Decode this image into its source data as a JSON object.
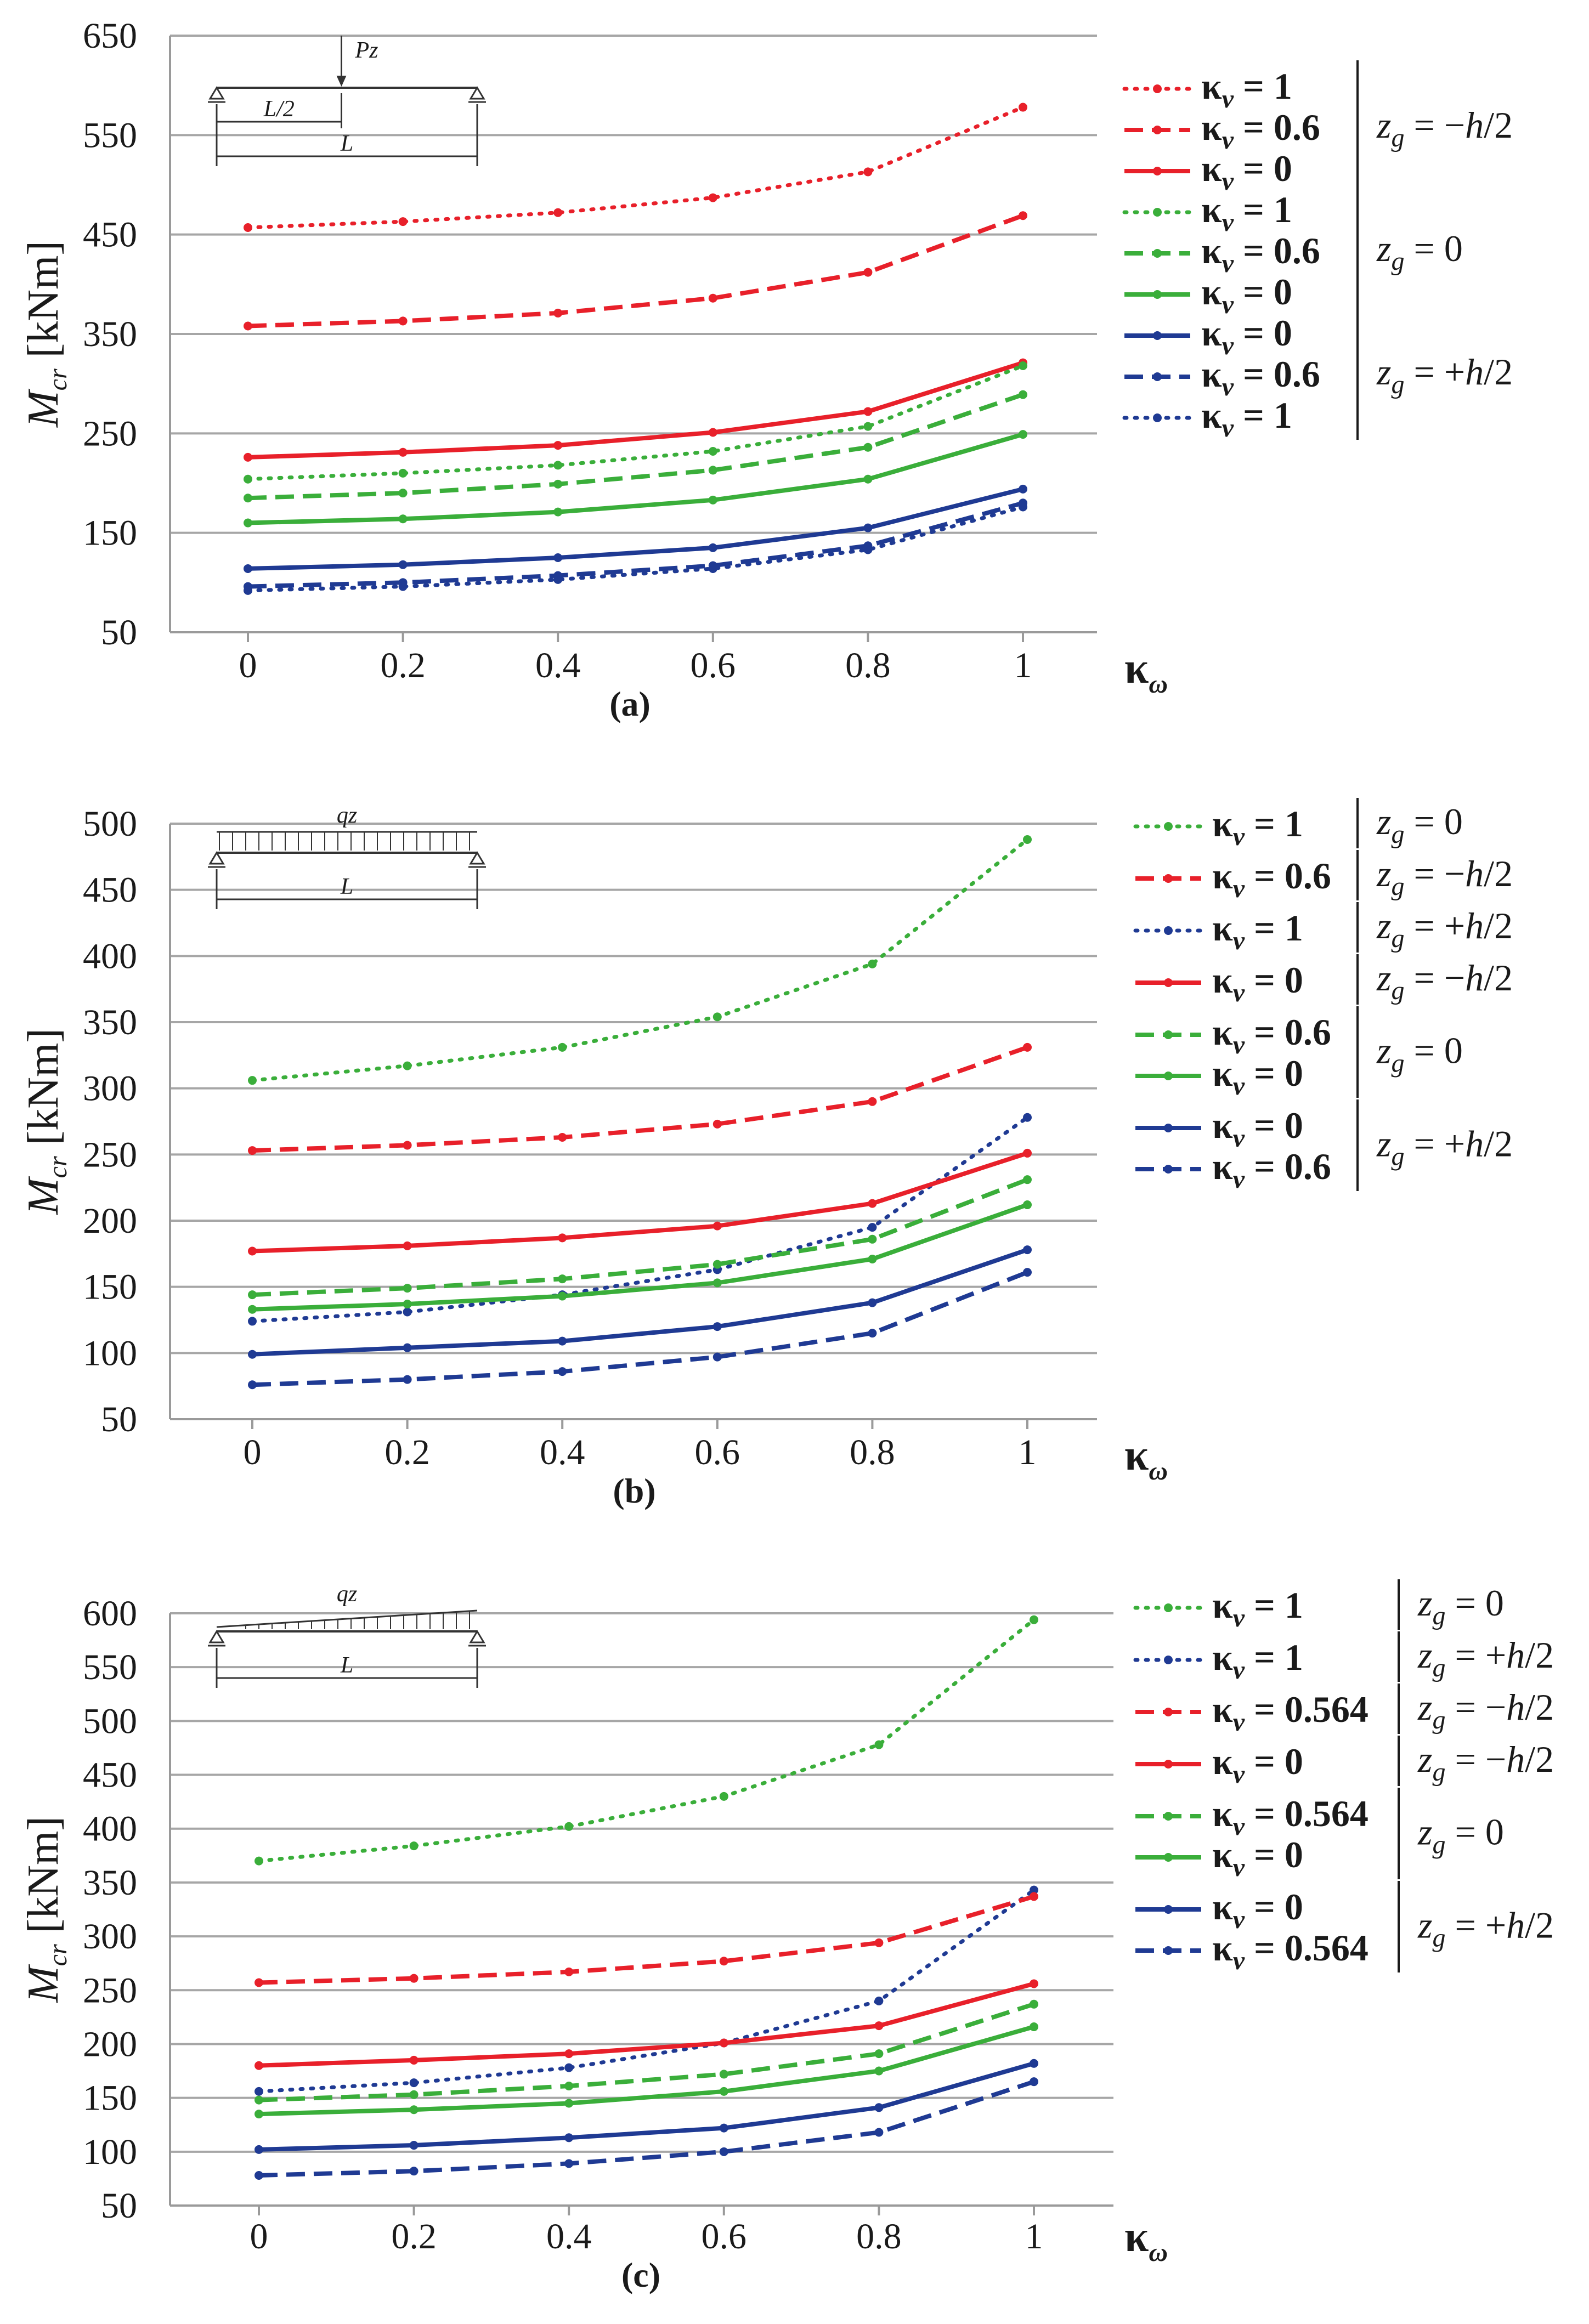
{
  "chart_data": [
    {
      "type": "line",
      "panel_label": "(a)",
      "ylabel": "M",
      "ylabel_sub": "cr",
      "ylabel_unit": " [kNm]",
      "xlabel": "κ",
      "xlabel_sub": "ω",
      "x": [
        0,
        0.2,
        0.4,
        0.6,
        0.8,
        1
      ],
      "x_tick_labels": [
        "0",
        "0.2",
        "0.4",
        "0.6",
        "0.8",
        "1"
      ],
      "ylim": [
        50,
        650
      ],
      "y_ticks": [
        50,
        150,
        250,
        350,
        450,
        550,
        650
      ],
      "y_tick_labels": [
        "50",
        "150",
        "250",
        "350",
        "450",
        "550",
        "650"
      ],
      "grid": true,
      "load_sketch": {
        "type": "point",
        "load_label": "Pz",
        "half_label": "L/2",
        "span_label": "L"
      },
      "series": [
        {
          "name": "κν = 1, zg = −h/2",
          "color": "#e8202a",
          "style": "dotted",
          "values": [
            457,
            463,
            472,
            487,
            513,
            578
          ]
        },
        {
          "name": "κν = 0.6, zg = −h/2",
          "color": "#e8202a",
          "style": "dashed",
          "values": [
            358,
            363,
            371,
            386,
            412,
            469
          ]
        },
        {
          "name": "κν = 0, zg = −h/2",
          "color": "#e8202a",
          "style": "solid",
          "values": [
            226,
            231,
            238,
            251,
            272,
            321
          ]
        },
        {
          "name": "κν = 1, zg = 0",
          "color": "#3aae3a",
          "style": "dotted",
          "values": [
            204,
            210,
            218,
            232,
            257,
            318
          ]
        },
        {
          "name": "κν = 0.6, zg = 0",
          "color": "#3aae3a",
          "style": "dashed",
          "values": [
            185,
            190,
            199,
            213,
            236,
            289
          ]
        },
        {
          "name": "κν = 0, zg = 0",
          "color": "#3aae3a",
          "style": "solid",
          "values": [
            160,
            164,
            171,
            183,
            204,
            249
          ]
        },
        {
          "name": "κν = 0, zg = +h/2",
          "color": "#1f3a93",
          "style": "solid",
          "values": [
            114,
            118,
            125,
            135,
            155,
            194
          ]
        },
        {
          "name": "κν = 0.6, zg = +h/2",
          "color": "#1f3a93",
          "style": "dashed",
          "values": [
            96,
            100,
            107,
            117,
            137,
            180
          ]
        },
        {
          "name": "κν = 1, zg = +h/2",
          "color": "#1f3a93",
          "style": "dotted",
          "values": [
            92,
            96,
            103,
            114,
            133,
            176
          ]
        }
      ],
      "legend": [
        {
          "color": "#e8202a",
          "style": "dotted",
          "kappa": "κ",
          "sub": "ν",
          "value": " = 1"
        },
        {
          "color": "#e8202a",
          "style": "dashed",
          "kappa": "κ",
          "sub": "ν",
          "value": " = 0.6"
        },
        {
          "color": "#e8202a",
          "style": "solid",
          "kappa": "κ",
          "sub": "ν",
          "value": " = 0"
        },
        {
          "color": "#3aae3a",
          "style": "dotted",
          "kappa": "κ",
          "sub": "ν",
          "value": " = 1"
        },
        {
          "color": "#3aae3a",
          "style": "dashed",
          "kappa": "κ",
          "sub": "ν",
          "value": " = 0.6"
        },
        {
          "color": "#3aae3a",
          "style": "solid",
          "kappa": "κ",
          "sub": "ν",
          "value": " = 0"
        },
        {
          "color": "#1f3a93",
          "style": "solid",
          "kappa": "κ",
          "sub": "ν",
          "value": " = 0"
        },
        {
          "color": "#1f3a93",
          "style": "dashed",
          "kappa": "κ",
          "sub": "ν",
          "value": " = 0.6"
        },
        {
          "color": "#1f3a93",
          "style": "dotted",
          "kappa": "κ",
          "sub": "ν",
          "value": " = 1"
        }
      ],
      "zg_groups": [
        {
          "first": 0,
          "last": 2,
          "z": "z",
          "sub": "g",
          "value": " = −",
          "h": "h",
          "tail": "/2"
        },
        {
          "first": 3,
          "last": 5,
          "z": "z",
          "sub": "g",
          "value": " = 0",
          "h": "",
          "tail": ""
        },
        {
          "first": 6,
          "last": 8,
          "z": "z",
          "sub": "g",
          "value": " = +",
          "h": "h",
          "tail": "/2"
        }
      ]
    },
    {
      "type": "line",
      "panel_label": "(b)",
      "ylabel": "M",
      "ylabel_sub": "cr",
      "ylabel_unit": " [kNm]",
      "xlabel": "κ",
      "xlabel_sub": "ω",
      "x": [
        0,
        0.2,
        0.4,
        0.6,
        0.8,
        1
      ],
      "x_tick_labels": [
        "0",
        "0.2",
        "0.4",
        "0.6",
        "0.8",
        "1"
      ],
      "ylim": [
        50,
        500
      ],
      "y_ticks": [
        50,
        100,
        150,
        200,
        250,
        300,
        350,
        400,
        450,
        500
      ],
      "y_tick_labels": [
        "50",
        "100",
        "150",
        "200",
        "250",
        "300",
        "350",
        "400",
        "450",
        "500"
      ],
      "grid": true,
      "load_sketch": {
        "type": "uniform",
        "load_label": "qz",
        "span_label": "L"
      },
      "series": [
        {
          "name": "κν = 1, zg = 0",
          "color": "#3aae3a",
          "style": "dotted",
          "values": [
            306,
            317,
            331,
            354,
            394,
            488
          ]
        },
        {
          "name": "κν = 0.6, zg = −h/2",
          "color": "#e8202a",
          "style": "dashed",
          "values": [
            253,
            257,
            263,
            273,
            290,
            331
          ]
        },
        {
          "name": "κν = 1, zg = +h/2",
          "color": "#1f3a93",
          "style": "dotted",
          "values": [
            124,
            131,
            144,
            163,
            195,
            278
          ]
        },
        {
          "name": "κν = 0, zg = −h/2",
          "color": "#e8202a",
          "style": "solid",
          "values": [
            177,
            181,
            187,
            196,
            213,
            251
          ]
        },
        {
          "name": "κν = 0.6, zg = 0",
          "color": "#3aae3a",
          "style": "dashed",
          "values": [
            144,
            149,
            156,
            167,
            186,
            231
          ]
        },
        {
          "name": "κν = 0, zg = 0",
          "color": "#3aae3a",
          "style": "solid",
          "values": [
            133,
            137,
            143,
            153,
            171,
            212
          ]
        },
        {
          "name": "κν = 0, zg = +h/2",
          "color": "#1f3a93",
          "style": "solid",
          "values": [
            99,
            104,
            109,
            120,
            138,
            178
          ]
        },
        {
          "name": "κν = 0.6, zg = +h/2",
          "color": "#1f3a93",
          "style": "dashed",
          "values": [
            76,
            80,
            86,
            97,
            115,
            161
          ]
        }
      ],
      "legend": [
        {
          "color": "#3aae3a",
          "style": "dotted",
          "kappa": "κ",
          "sub": "ν",
          "value": " = 1"
        },
        {
          "color": "#e8202a",
          "style": "dashed",
          "kappa": "κ",
          "sub": "ν",
          "value": " = 0.6"
        },
        {
          "color": "#1f3a93",
          "style": "dotted",
          "kappa": "κ",
          "sub": "ν",
          "value": " = 1"
        },
        {
          "color": "#e8202a",
          "style": "solid",
          "kappa": "κ",
          "sub": "ν",
          "value": " = 0"
        },
        {
          "color": "#3aae3a",
          "style": "dashed",
          "kappa": "κ",
          "sub": "ν",
          "value": " = 0.6"
        },
        {
          "color": "#3aae3a",
          "style": "solid",
          "kappa": "κ",
          "sub": "ν",
          "value": " = 0"
        },
        {
          "color": "#1f3a93",
          "style": "solid",
          "kappa": "κ",
          "sub": "ν",
          "value": " = 0"
        },
        {
          "color": "#1f3a93",
          "style": "dashed",
          "kappa": "κ",
          "sub": "ν",
          "value": " = 0.6"
        }
      ],
      "zg_groups": [
        {
          "first": 0,
          "last": 0,
          "z": "z",
          "sub": "g",
          "value": " = 0",
          "h": "",
          "tail": ""
        },
        {
          "first": 1,
          "last": 1,
          "z": "z",
          "sub": "g",
          "value": " = −",
          "h": "h",
          "tail": "/2"
        },
        {
          "first": 2,
          "last": 2,
          "z": "z",
          "sub": "g",
          "value": " = +",
          "h": "h",
          "tail": "/2"
        },
        {
          "first": 3,
          "last": 3,
          "z": "z",
          "sub": "g",
          "value": " = −",
          "h": "h",
          "tail": "/2"
        },
        {
          "first": 4,
          "last": 5,
          "z": "z",
          "sub": "g",
          "value": " = 0",
          "h": "",
          "tail": ""
        },
        {
          "first": 6,
          "last": 7,
          "z": "z",
          "sub": "g",
          "value": " = +",
          "h": "h",
          "tail": "/2"
        }
      ]
    },
    {
      "type": "line",
      "panel_label": "(c)",
      "ylabel": "M",
      "ylabel_sub": "cr",
      "ylabel_unit": " [kNm]",
      "xlabel": "κ",
      "xlabel_sub": "ω",
      "x": [
        0,
        0.2,
        0.4,
        0.6,
        0.8,
        1
      ],
      "x_tick_labels": [
        "0",
        "0.2",
        "0.4",
        "0.6",
        "0.8",
        "1"
      ],
      "ylim": [
        50,
        600
      ],
      "y_ticks": [
        50,
        100,
        150,
        200,
        250,
        300,
        350,
        400,
        450,
        500,
        550,
        600
      ],
      "y_tick_labels": [
        "50",
        "100",
        "150",
        "200",
        "250",
        "300",
        "350",
        "400",
        "450",
        "500",
        "550",
        "600"
      ],
      "grid": true,
      "load_sketch": {
        "type": "triangular",
        "load_label": "qz",
        "span_label": "L"
      },
      "series": [
        {
          "name": "κν = 1, zg = 0",
          "color": "#3aae3a",
          "style": "dotted",
          "values": [
            370,
            384,
            402,
            430,
            478,
            594
          ]
        },
        {
          "name": "κν = 1, zg = +h/2",
          "color": "#1f3a93",
          "style": "dotted",
          "values": [
            156,
            164,
            178,
            201,
            240,
            343
          ]
        },
        {
          "name": "κν = 0.564, zg = −h/2",
          "color": "#e8202a",
          "style": "dashed",
          "values": [
            257,
            261,
            267,
            277,
            294,
            337
          ]
        },
        {
          "name": "κν = 0, zg = −h/2",
          "color": "#e8202a",
          "style": "solid",
          "values": [
            180,
            185,
            191,
            201,
            217,
            256
          ]
        },
        {
          "name": "κν = 0.564, zg = 0",
          "color": "#3aae3a",
          "style": "dashed",
          "values": [
            148,
            153,
            161,
            172,
            191,
            237
          ]
        },
        {
          "name": "κν = 0, zg = 0",
          "color": "#3aae3a",
          "style": "solid",
          "values": [
            135,
            139,
            145,
            156,
            175,
            216
          ]
        },
        {
          "name": "κν = 0, zg = +h/2",
          "color": "#1f3a93",
          "style": "solid",
          "values": [
            102,
            106,
            113,
            122,
            141,
            182
          ]
        },
        {
          "name": "κν = 0.564, zg = +h/2",
          "color": "#1f3a93",
          "style": "dashed",
          "values": [
            78,
            82,
            89,
            100,
            118,
            165
          ]
        }
      ],
      "legend": [
        {
          "color": "#3aae3a",
          "style": "dotted",
          "kappa": "κ",
          "sub": "ν",
          "value": " = 1"
        },
        {
          "color": "#1f3a93",
          "style": "dotted",
          "kappa": "κ",
          "sub": "ν",
          "value": " = 1"
        },
        {
          "color": "#e8202a",
          "style": "dashed",
          "kappa": "κ",
          "sub": "ν",
          "value": " = 0.564"
        },
        {
          "color": "#e8202a",
          "style": "solid",
          "kappa": "κ",
          "sub": "ν",
          "value": " = 0"
        },
        {
          "color": "#3aae3a",
          "style": "dashed",
          "kappa": "κ",
          "sub": "ν",
          "value": " = 0.564"
        },
        {
          "color": "#3aae3a",
          "style": "solid",
          "kappa": "κ",
          "sub": "ν",
          "value": " = 0"
        },
        {
          "color": "#1f3a93",
          "style": "solid",
          "kappa": "κ",
          "sub": "ν",
          "value": " = 0"
        },
        {
          "color": "#1f3a93",
          "style": "dashed",
          "kappa": "κ",
          "sub": "ν",
          "value": " = 0.564"
        }
      ],
      "zg_groups": [
        {
          "first": 0,
          "last": 0,
          "z": "z",
          "sub": "g",
          "value": " = 0",
          "h": "",
          "tail": ""
        },
        {
          "first": 1,
          "last": 1,
          "z": "z",
          "sub": "g",
          "value": " = +",
          "h": "h",
          "tail": "/2"
        },
        {
          "first": 2,
          "last": 2,
          "z": "z",
          "sub": "g",
          "value": " = −",
          "h": "h",
          "tail": "/2"
        },
        {
          "first": 3,
          "last": 3,
          "z": "z",
          "sub": "g",
          "value": " = −",
          "h": "h",
          "tail": "/2"
        },
        {
          "first": 4,
          "last": 5,
          "z": "z",
          "sub": "g",
          "value": " = 0",
          "h": "",
          "tail": ""
        },
        {
          "first": 6,
          "last": 7,
          "z": "z",
          "sub": "g",
          "value": " = +",
          "h": "h",
          "tail": "/2"
        }
      ]
    }
  ]
}
